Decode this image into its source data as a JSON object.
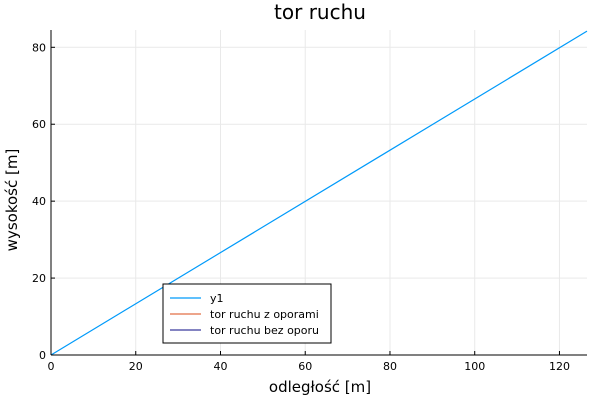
{
  "chart_data": {
    "type": "line",
    "title": "tor ruchu",
    "xlabel": "odległość [m]",
    "ylabel": "wysokość [m]",
    "xlim": [
      0,
      126.5
    ],
    "ylim": [
      0,
      84.5
    ],
    "xticks": [
      0,
      20,
      40,
      60,
      80,
      100,
      120
    ],
    "yticks": [
      0,
      20,
      40,
      60,
      80
    ],
    "grid": true,
    "legend_position": "bottom-left",
    "series": [
      {
        "name": "y1",
        "color": "#009AFA",
        "x": [
          0,
          126.5
        ],
        "y": [
          0,
          84.2
        ]
      },
      {
        "name": "tor ruchu z oporami",
        "color": "#E26F46",
        "x": [],
        "y": []
      },
      {
        "name": "tor ruchu bez oporu",
        "color": "#3A3A9E",
        "x": [],
        "y": []
      }
    ]
  }
}
